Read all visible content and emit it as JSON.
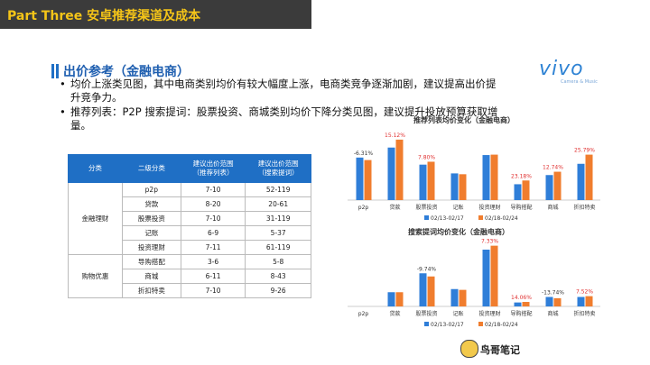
{
  "header": {
    "title": "Part Three 安卓推荐渠道及成本"
  },
  "section": {
    "heading": "出价参考（金融电商）"
  },
  "logo": {
    "word": "vivo",
    "tagline": "Camera & Music"
  },
  "bullets": [
    "均价上涨类见图，其中电商类别均价有较大幅度上涨，电商类竞争逐渐加剧，建议提高出价提升竞争力。",
    "推荐列表：P2P 搜索提词：股票投资、商城类别均价下降分类见图，建议提升投放预算获取增量。"
  ],
  "table": {
    "headers": [
      "分类",
      "二级分类",
      "建议出价范围\n（推荐列表）",
      "建议出价范围\n（搜索提词）"
    ],
    "groups": [
      {
        "category": "金融理财",
        "rows": [
          [
            "p2p",
            "7-10",
            "52-119"
          ],
          [
            "贷款",
            "8-20",
            "20-61"
          ],
          [
            "股票投资",
            "7-10",
            "31-119"
          ],
          [
            "记账",
            "6-9",
            "5-37"
          ],
          [
            "投资理财",
            "7-11",
            "61-119"
          ]
        ]
      },
      {
        "category": "购物优惠",
        "rows": [
          [
            "导购搭配",
            "3-6",
            "5-8"
          ],
          [
            "商城",
            "6-11",
            "8-43"
          ],
          [
            "折扣特卖",
            "7-10",
            "9-26"
          ]
        ]
      }
    ]
  },
  "chart_data": [
    {
      "type": "bar",
      "title": "推荐列表均价变化（金融电商）",
      "categories": [
        "p2p",
        "贷款",
        "股票投资",
        "记账",
        "投资理财",
        "导购搭配",
        "商城",
        "折扣特卖"
      ],
      "series": [
        {
          "name": "02/13-02/17",
          "values": [
            10.2,
            12.6,
            8.5,
            6.4,
            10.8,
            3.8,
            6.0,
            8.7
          ]
        },
        {
          "name": "02/18-02/24",
          "values": [
            9.6,
            14.5,
            9.2,
            6.2,
            10.9,
            4.7,
            6.8,
            10.9
          ]
        }
      ],
      "annotations": [
        "-6.31%",
        "15.12%",
        "7.80%",
        "",
        "",
        "23.18%",
        "12.74%",
        "25.79%"
      ],
      "legend": "bottom",
      "colors": [
        "#2f7ed8",
        "#f07d2e"
      ]
    },
    {
      "type": "bar",
      "title": "搜索提词均价变化（金融电商）",
      "categories": [
        "p2p",
        "贷款",
        "股票投资",
        "记账",
        "投资理财",
        "导购搭配",
        "商城",
        "折扣特卖"
      ],
      "series": [
        {
          "name": "02/13-02/17",
          "values": [
            0,
            18,
            42,
            22,
            72,
            5,
            12,
            12
          ]
        },
        {
          "name": "02/18-02/24",
          "values": [
            0,
            18,
            38,
            21,
            77,
            5.7,
            10.4,
            13
          ]
        }
      ],
      "annotations": [
        "",
        "",
        "-9.74%",
        "",
        "7.33%",
        "14.06%",
        "-13.74%",
        "7.52%"
      ],
      "legend": "bottom",
      "colors": [
        "#2f7ed8",
        "#f07d2e"
      ]
    }
  ],
  "footer": {
    "brand": "鸟哥笔记"
  }
}
